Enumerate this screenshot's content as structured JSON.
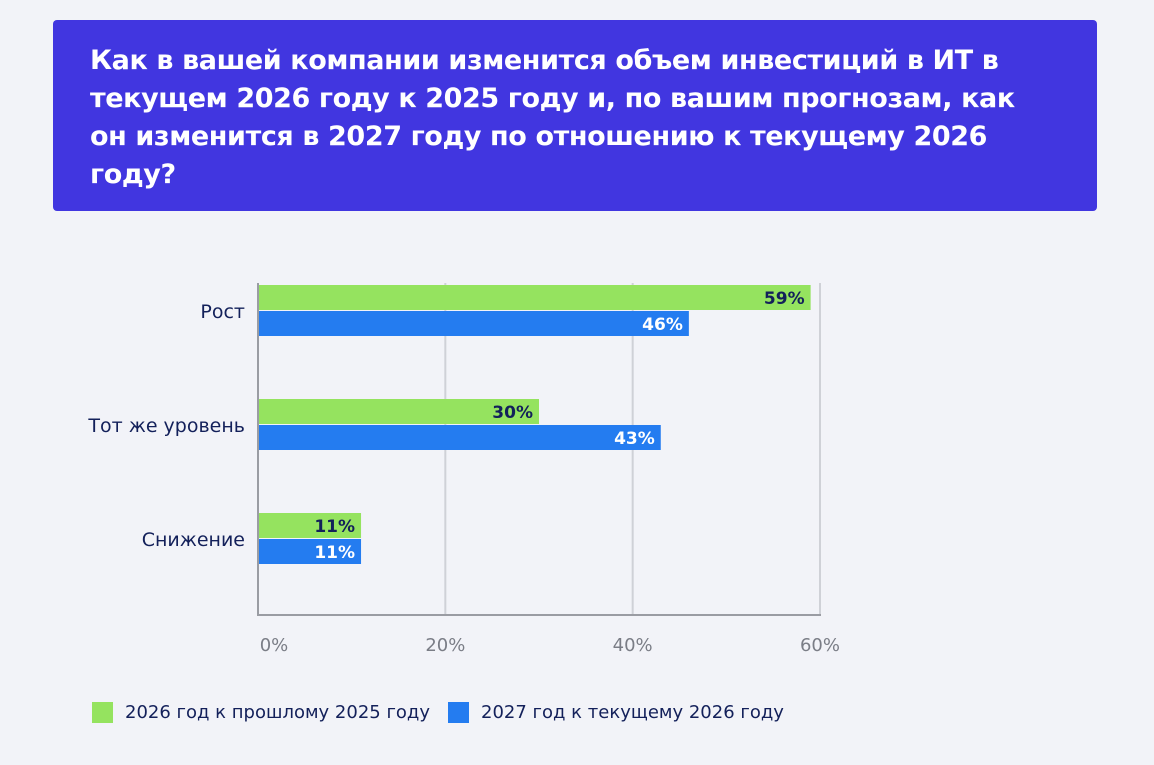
{
  "title": "Как в вашей компании изменится объем инвестиций в ИТ в текущем 2026 году к 2025 году и, по вашим прогнозам, как он изменится в 2027 году по отношению к текущему 2026 году?",
  "colors": {
    "banner": "#4136e0",
    "series_2026": "#95e35f",
    "series_2027": "#247cf0",
    "label_on_green": "#13205a",
    "label_on_blue": "#ffffff",
    "grid": "#cfd1d7",
    "axis": "#9a9ca3"
  },
  "chart_data": {
    "type": "bar",
    "orientation": "horizontal",
    "categories": [
      "Рост",
      "Тот же уровень",
      "Снижение"
    ],
    "series": [
      {
        "name": "2026 год к прошлому 2025 году",
        "values": [
          59,
          30,
          11
        ],
        "labels": [
          "59%",
          "30%",
          "11%"
        ]
      },
      {
        "name": "2027 год к текущему 2026 году",
        "values": [
          46,
          43,
          11
        ],
        "labels": [
          "46%",
          "43%",
          "11%"
        ]
      }
    ],
    "xlim": [
      0,
      60
    ],
    "xticks": [
      0,
      20,
      40,
      60
    ],
    "xtick_labels": [
      "0%",
      "20%",
      "40%",
      "60%"
    ],
    "grid": true,
    "legend_position": "bottom-left"
  }
}
